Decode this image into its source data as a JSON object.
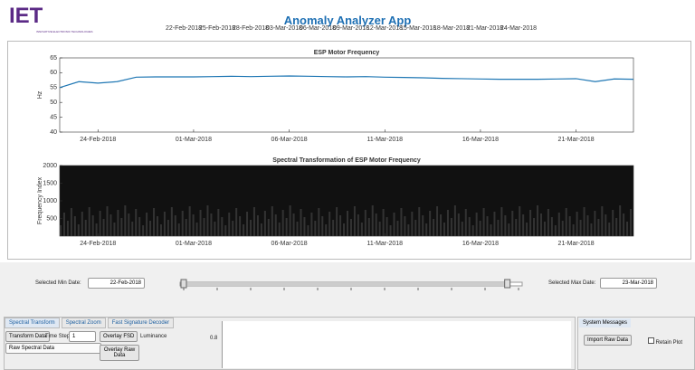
{
  "header": {
    "logo": "IET",
    "logo_sub": "INNOVATIVE ELECTRONIC TECHNOLOGIES",
    "title": "Anomaly Analyzer App"
  },
  "chart_data": [
    {
      "type": "line",
      "title": "ESP Motor Frequency",
      "ylabel": "Hz",
      "color": "#1f77b4",
      "x": [
        "22-Feb-2018",
        "23-Feb-2018",
        "24-Feb-2018",
        "25-Feb-2018",
        "26-Feb-2018",
        "27-Feb-2018",
        "28-Feb-2018",
        "01-Mar-2018",
        "02-Mar-2018",
        "03-Mar-2018",
        "04-Mar-2018",
        "05-Mar-2018",
        "06-Mar-2018",
        "07-Mar-2018",
        "08-Mar-2018",
        "09-Mar-2018",
        "10-Mar-2018",
        "11-Mar-2018",
        "12-Mar-2018",
        "13-Mar-2018",
        "14-Mar-2018",
        "15-Mar-2018",
        "16-Mar-2018",
        "17-Mar-2018",
        "18-Mar-2018",
        "19-Mar-2018",
        "20-Mar-2018",
        "21-Mar-2018",
        "22-Mar-2018",
        "23-Mar-2018",
        "24-Mar-2018"
      ],
      "values": [
        55,
        57,
        56.5,
        57,
        58.5,
        58.6,
        58.6,
        58.6,
        58.7,
        58.8,
        58.7,
        58.8,
        58.9,
        58.8,
        58.7,
        58.6,
        58.7,
        58.5,
        58.4,
        58.3,
        58.1,
        58.0,
        57.9,
        57.8,
        57.8,
        57.8,
        57.9,
        58.0,
        57.0,
        57.9,
        57.8
      ],
      "xlim": [
        "22-Feb-2018",
        "24-Mar-2018"
      ],
      "xticks": [
        "24-Feb-2018",
        "01-Mar-2018",
        "06-Mar-2018",
        "11-Mar-2018",
        "16-Mar-2018",
        "21-Mar-2018"
      ],
      "ylim": [
        40,
        65
      ],
      "yticks": [
        40,
        45,
        50,
        55,
        60,
        65
      ]
    },
    {
      "type": "image",
      "title": "Spectral Transformation of ESP Motor Frequency",
      "ylabel": "Frequency Index",
      "xlim": [
        "22-Feb-2018",
        "24-Mar-2018"
      ],
      "xticks": [
        "24-Feb-2018",
        "01-Mar-2018",
        "06-Mar-2018",
        "11-Mar-2018",
        "16-Mar-2018",
        "21-Mar-2018"
      ],
      "ylim": [
        0,
        2000
      ],
      "yticks": [
        500,
        1000,
        1500,
        2000
      ]
    }
  ],
  "controls": {
    "min_label": "Selected Min Date:",
    "min_date": "22-Feb-2018",
    "max_label": "Selected Max Date:",
    "max_date": "23-Mar-2018",
    "slider_ticks": [
      "22-Feb-2018",
      "25-Feb-2018",
      "28-Feb-2018",
      "03-Mar-2018",
      "06-Mar-2018",
      "09-Mar-2018",
      "12-Mar-2018",
      "15-Mar-2018",
      "18-Mar-2018",
      "21-Mar-2018",
      "24-Mar-2018"
    ]
  },
  "tabs": [
    "Spectral Transform",
    "Spectral Zoom",
    "Fast Signature Decoder"
  ],
  "panel": {
    "transform": "Transform Data",
    "time_step": "Time Step:",
    "step_value": "1",
    "overlay_fsd": "Overlay FSD",
    "luminance": "Luminance",
    "dropdown": "Raw Spectral Data",
    "overlay_raw": "Overlay Raw Data",
    "axis_tick": "0.8"
  },
  "messages": {
    "tab": "System Messages",
    "import": "Import Raw Data",
    "retain": "Retain Plot"
  }
}
